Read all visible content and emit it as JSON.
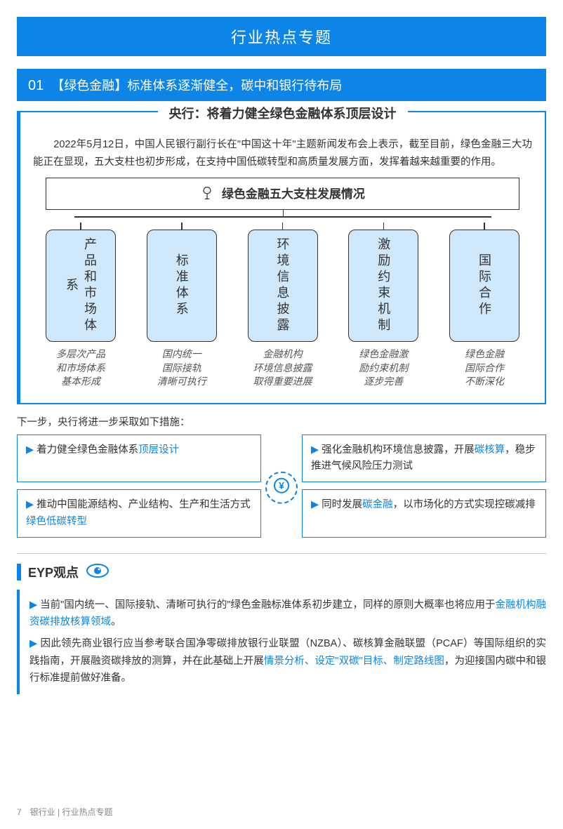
{
  "colors": {
    "brand_blue": "#0d85e8",
    "pillar_fill": "#cfe8fb",
    "text_gray": "#555555",
    "border_black": "#333333",
    "divider": "#cccccc",
    "footer_gray": "#888888"
  },
  "header": {
    "title": "行业热点专题"
  },
  "section": {
    "num": "01",
    "tag": "【绿色金融】",
    "rest": "标准体系逐渐健全，碳中和银行待布局"
  },
  "box": {
    "title": "央行：将着力健全绿色金融体系顶层设计",
    "intro": "2022年5月12日，中国人民银行副行长在\"中国这十年\"主题新闻发布会上表示，截至目前，绿色金融三大功能正在显现，五大支柱也初步形成，在支持中国低碳转型和高质量发展方面，发挥着越来越重要的作用。"
  },
  "pillars": {
    "header": "绿色金融五大支柱发展情况",
    "items": [
      {
        "name": "产品和市场体系",
        "desc": "多层次产品\n和市场体系\n基本形成"
      },
      {
        "name": "标准体系",
        "desc": "国内统一\n国际接轨\n清晰可执行"
      },
      {
        "name": "环境信息披露",
        "desc": "金融机构\n环境信息披露\n取得重要进展"
      },
      {
        "name": "激励约束机制",
        "desc": "绿色金融激\n励约束机制\n逐步完善"
      },
      {
        "name": "国际合作",
        "desc": "绿色金融\n国际合作\n不断深化"
      }
    ]
  },
  "next_step_label": "下一步，央行将进一步采取如下措施：",
  "measures": [
    {
      "pre": "着力健全绿色金融体系",
      "hl": "顶层设计",
      "post": ""
    },
    {
      "pre": "强化金融机构环境信息披露，开展",
      "hl": "碳核算",
      "post": "，稳步推进气候风险压力测试"
    },
    {
      "pre": "推动中国能源结构、产业结构、生产和生活方式",
      "hl": "绿色低碳转型",
      "post": ""
    },
    {
      "pre": "同时发展",
      "hl": "碳金融",
      "post": "，以市场化的方式实现控碳减排"
    }
  ],
  "eyp": {
    "title": "EYP观点",
    "points": [
      {
        "pre": "当前\"国内统一、国际接轨、清晰可执行的\"绿色金融标准体系初步建立，同样的原则大概率也将应用于",
        "hl": "金融机构融资碳排放核算领域",
        "post": "。"
      },
      {
        "pre": "因此领先商业银行应当参考联合国净零碳排放银行业联盟（NZBA）、碳核算金融联盟（PCAF）等国际组织的实践指南，开展融资碳排放的测算，并在此基础上开展",
        "hl": "情景分析、设定\"双碳\"目标、制定路线图",
        "post": "，为迎接国内碳中和银行标准提前做好准备。"
      }
    ]
  },
  "footer": {
    "page": "7",
    "label": "银行业 | 行业热点专题"
  }
}
